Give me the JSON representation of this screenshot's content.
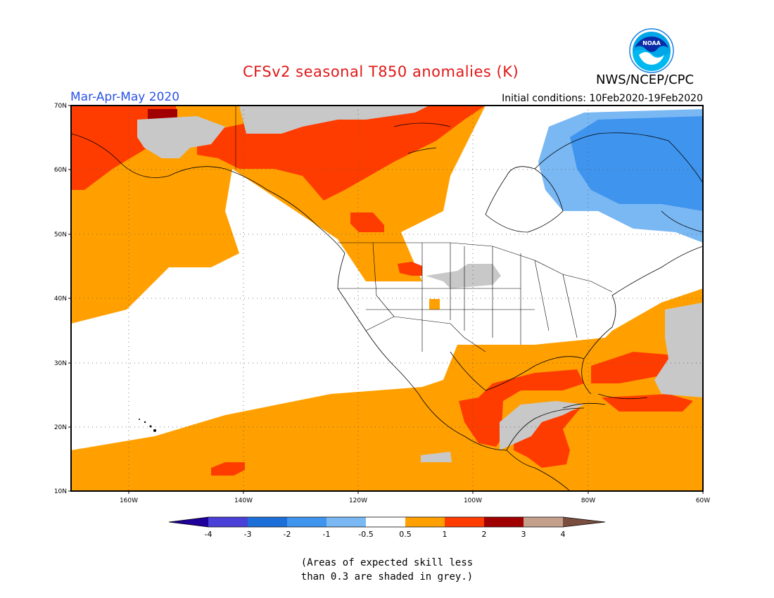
{
  "title": "CFSv2 seasonal T850 anomalies (K)",
  "agency": "NWS/NCEP/CPC",
  "logo_icon": "noaa-logo-icon",
  "season": "Mar-Apr-May 2020",
  "initial_conditions": "Initial conditions: 10Feb2020-19Feb2020",
  "map": {
    "lon_range": [
      -170,
      -60
    ],
    "lat_range": [
      10,
      70
    ],
    "lat_labels": [
      "70N",
      "60N",
      "50N",
      "40N",
      "30N",
      "20N",
      "10N"
    ],
    "lon_labels": [
      "160W",
      "140W",
      "120W",
      "100W",
      "80W",
      "60W"
    ],
    "grid": "dotted"
  },
  "colorbar": {
    "tick_labels": [
      "-4",
      "-3",
      "-2",
      "-1",
      "-0.5",
      "0.5",
      "1",
      "2",
      "3",
      "4"
    ],
    "colors": [
      "#1f009a",
      "#4a3fd6",
      "#1c6fd8",
      "#3f94ee",
      "#7ab8f4",
      "#ffffff",
      "#ffa000",
      "#ff3c00",
      "#a10000",
      "#c4a08c",
      "#7a4e3e"
    ]
  },
  "skill_note": {
    "line1": "(Areas of expected skill less",
    "line2": "than 0.3 are shaded in grey.)",
    "grey": "#c8c8c8"
  }
}
